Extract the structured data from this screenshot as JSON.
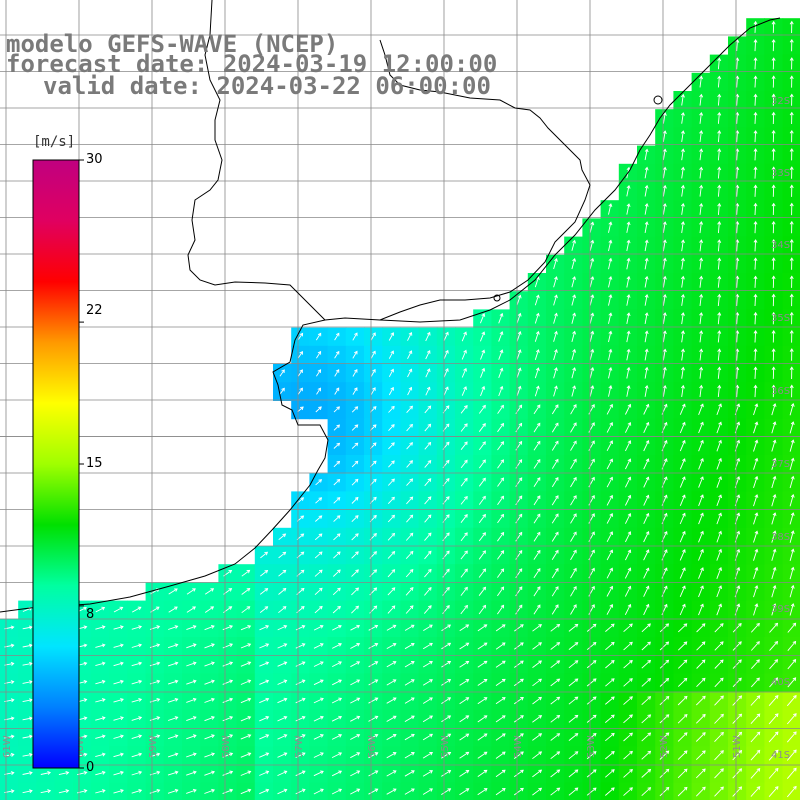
{
  "titles": {
    "model": "modelo GEFS-WAVE (NCEP)",
    "forecast": "forecast date: 2024-03-19 12:00:00",
    "valid": "valid date: 2024-03-22 06:00:00"
  },
  "colorbar": {
    "unit": "[m/s]",
    "ticks": [
      "30",
      "22",
      "15",
      "8",
      "0"
    ],
    "tick_values": [
      30,
      22,
      15,
      8,
      0
    ],
    "min": 0,
    "max": 30,
    "colors": [
      "#0000ff",
      "#0080ff",
      "#00e5ff",
      "#00ffa0",
      "#00e000",
      "#a0ff00",
      "#ffff00",
      "#ff9900",
      "#ff0000",
      "#e00060",
      "#c00080"
    ]
  },
  "lat_labels": [
    "32S",
    "33S",
    "34S",
    "35S",
    "36S",
    "37S",
    "38S",
    "39S",
    "40S",
    "41S"
  ],
  "lon_labels": [
    "61W",
    "60W",
    "59W",
    "58W",
    "57W",
    "56W",
    "55W",
    "54W",
    "53W",
    "52W",
    "51W"
  ],
  "colors": {
    "land": "#ffffff",
    "coast": "#000000",
    "grid": "#888888",
    "arrow": "#ffffff",
    "title": "#7a7a7a"
  }
}
